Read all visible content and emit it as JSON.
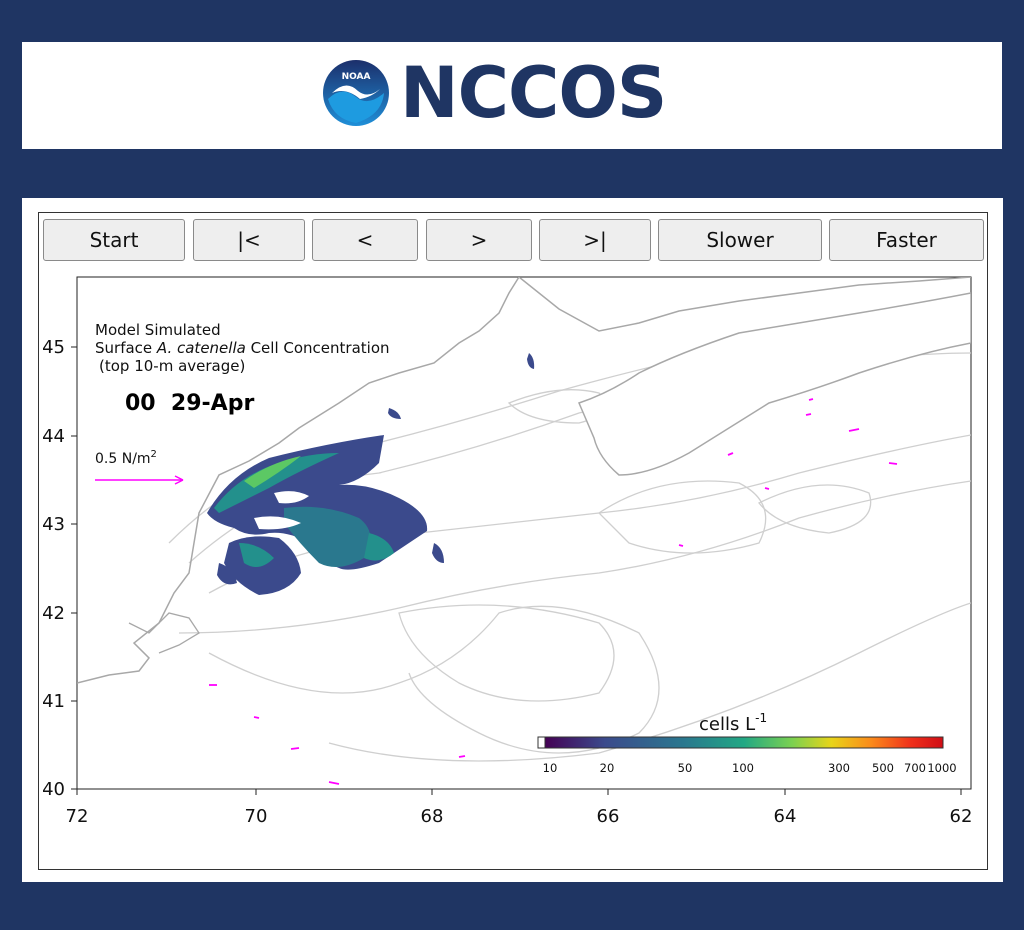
{
  "header": {
    "logo_badge_text": "NOAA",
    "logo_text": "NCCOS"
  },
  "controls": [
    {
      "key": "start",
      "label": "Start"
    },
    {
      "key": "first",
      "label": "|<"
    },
    {
      "key": "prev",
      "label": "<"
    },
    {
      "key": "next",
      "label": ">"
    },
    {
      "key": "last",
      "label": ">|"
    },
    {
      "key": "slower",
      "label": "Slower"
    },
    {
      "key": "faster",
      "label": "Faster"
    }
  ],
  "map": {
    "title_line1": "Model Simulated",
    "title_line2_prefix": "Surface ",
    "title_line2_species": "A. catenella",
    "title_line2_suffix": " Cell Concentration",
    "title_line3": "(top 10-m average)",
    "frame_label": "00  29-Apr",
    "wind_scale_label": "0.5 N/m",
    "wind_scale_sup": "2",
    "x_ticks": [
      "72",
      "70",
      "68",
      "66",
      "64",
      "62"
    ],
    "y_ticks": [
      "45",
      "44",
      "43",
      "42",
      "41",
      "40"
    ],
    "colorbar_label": "cells L",
    "colorbar_label_sup": "-1",
    "colorbar_ticks": [
      "10",
      "20",
      "50",
      "100",
      "300",
      "500",
      "700",
      "1000"
    ],
    "colors": {
      "bloom_low": "#3b4a8c",
      "bloom_mid": "#23908c",
      "bloom_high": "#5cc864",
      "coast": "#a8a8a8",
      "isobath": "#cfcfcf",
      "wind_arrow": "#ff00ff"
    }
  }
}
